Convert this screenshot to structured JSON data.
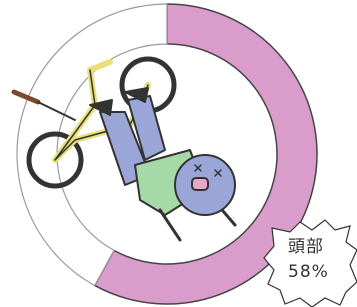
{
  "chart_data": {
    "type": "donut",
    "categories": [
      "頭部",
      null
    ],
    "values": [
      58,
      42
    ],
    "value_labels": [
      "58%",
      null
    ],
    "colors": [
      "#d99ccb",
      "#ffffff"
    ]
  }
}
